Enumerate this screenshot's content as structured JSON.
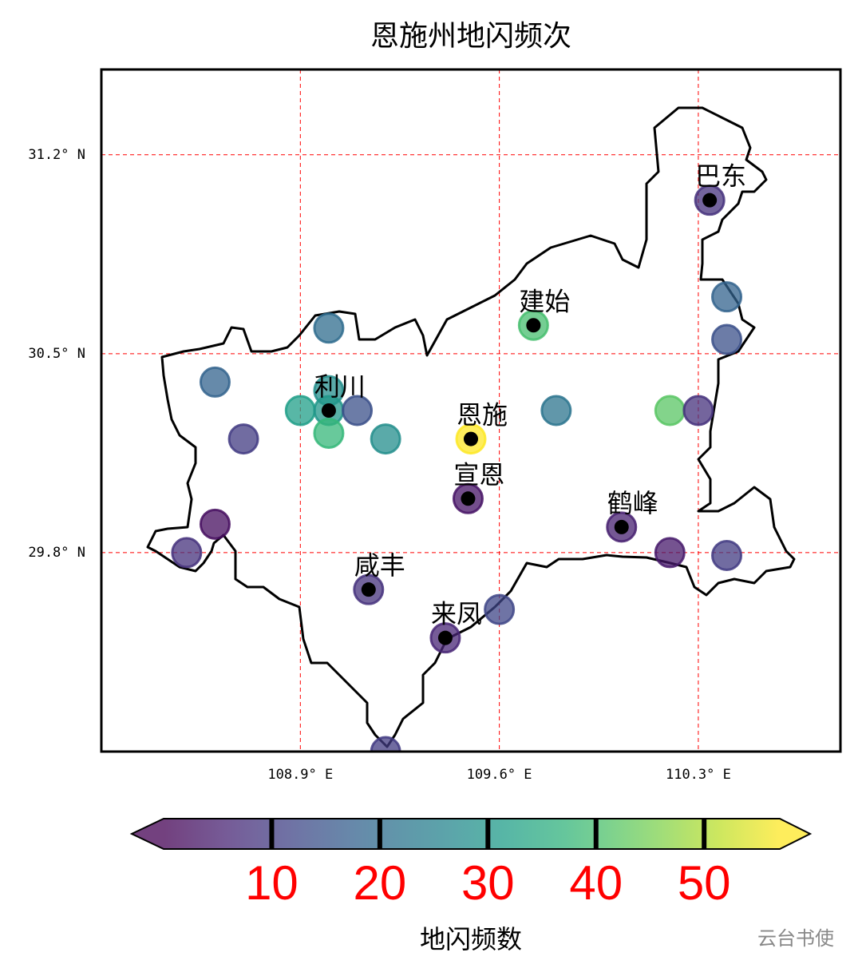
{
  "chart_data": {
    "type": "scatter",
    "title": "恩施州地闪频次",
    "xlim": [
      108.2,
      110.8
    ],
    "ylim": [
      29.1,
      31.5
    ],
    "xticks": [
      {
        "value": 108.9,
        "label": "108.9° E"
      },
      {
        "value": 109.6,
        "label": "109.6° E"
      },
      {
        "value": 110.3,
        "label": "110.3° E"
      }
    ],
    "yticks": [
      {
        "value": 29.8,
        "label": "29.8° N"
      },
      {
        "value": 30.5,
        "label": "30.5° N"
      },
      {
        "value": 31.2,
        "label": "31.2° N"
      }
    ],
    "grid": true,
    "grid_color": "#ff0000",
    "x": [
      110.34,
      110.4,
      110.4,
      109.72,
      109.0,
      108.6,
      109.0,
      108.9,
      109.0,
      109.1,
      109.0,
      109.2,
      108.7,
      109.5,
      109.8,
      110.2,
      110.3,
      109.49,
      108.6,
      108.5,
      110.03,
      110.2,
      110.4,
      109.14,
      109.6,
      109.41,
      109.2
    ],
    "y": [
      31.04,
      30.7,
      30.55,
      30.6,
      30.59,
      30.4,
      30.37,
      30.3,
      30.3,
      30.3,
      30.22,
      30.2,
      30.2,
      30.2,
      30.3,
      30.3,
      30.3,
      29.99,
      29.9,
      29.8,
      29.89,
      29.8,
      29.79,
      29.67,
      29.6,
      29.5,
      29.1
    ],
    "values": [
      8,
      18,
      14,
      40,
      20,
      18,
      28,
      32,
      30,
      14,
      38,
      28,
      10,
      57,
      22,
      42,
      8,
      3,
      2,
      8,
      5,
      4,
      10,
      8,
      12,
      6,
      10
    ],
    "colormap": [
      "#440154",
      "#482878",
      "#3e4989",
      "#31688e",
      "#26828e",
      "#1f9e89",
      "#35b779",
      "#6ece58",
      "#b5de2b",
      "#fde725"
    ],
    "clim": [
      0,
      57
    ],
    "colorbar": {
      "ticks": [
        10,
        20,
        30,
        40,
        50
      ],
      "label": "地闪频数",
      "tick_color": "#ff0000"
    },
    "cities": [
      {
        "name": "巴东",
        "lon": 110.34,
        "lat": 31.04
      },
      {
        "name": "建始",
        "lon": 109.72,
        "lat": 30.6
      },
      {
        "name": "利川",
        "lon": 109.0,
        "lat": 30.3
      },
      {
        "name": "恩施",
        "lon": 109.5,
        "lat": 30.2
      },
      {
        "name": "宣恩",
        "lon": 109.49,
        "lat": 29.99
      },
      {
        "name": "鹤峰",
        "lon": 110.03,
        "lat": 29.89
      },
      {
        "name": "咸丰",
        "lon": 109.14,
        "lat": 29.67
      },
      {
        "name": "来凤",
        "lon": 109.41,
        "lat": 29.5
      }
    ],
    "watermark": "云台书使"
  }
}
